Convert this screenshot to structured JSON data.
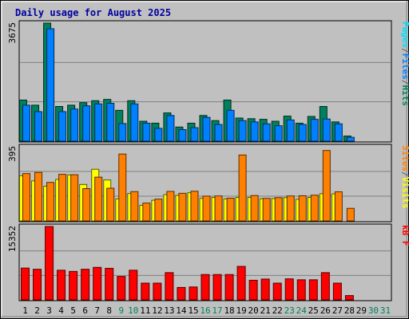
{
  "chart_data": {
    "type": "bar",
    "title": "Daily usage for August 2025",
    "days": [
      1,
      2,
      3,
      4,
      5,
      6,
      7,
      8,
      9,
      10,
      11,
      12,
      13,
      14,
      15,
      16,
      17,
      18,
      19,
      20,
      21,
      22,
      23,
      24,
      25,
      26,
      27,
      28,
      29,
      30,
      31
    ],
    "weekend_days": [
      9,
      10,
      16,
      17,
      23,
      24,
      30,
      31
    ],
    "panels": [
      {
        "id": "hits-files",
        "max_label": "3675",
        "ylim": [
          0,
          3675
        ],
        "legend": [
          "Pages",
          "/",
          "Files",
          "/",
          "Hits"
        ],
        "legend_colors": [
          "#00e0ff",
          "#606060",
          "#0080ff",
          "#606060",
          "#00805c"
        ],
        "series": [
          {
            "name": "Hits",
            "color": "#00805c",
            "values": [
              1280,
              1120,
              3675,
              1080,
              1120,
              1200,
              1260,
              1300,
              960,
              1260,
              620,
              560,
              880,
              440,
              560,
              800,
              640,
              1280,
              720,
              700,
              680,
              620,
              780,
              560,
              770,
              1080,
              600,
              160,
              0,
              0,
              0
            ]
          },
          {
            "name": "Files",
            "color": "#0080ff",
            "values": [
              1120,
              920,
              3500,
              920,
              1000,
              1100,
              1160,
              1180,
              550,
              1160,
              560,
              400,
              800,
              360,
              420,
              740,
              520,
              960,
              640,
              600,
              540,
              480,
              660,
              520,
              680,
              690,
              540,
              120,
              0,
              0,
              0
            ]
          }
        ]
      },
      {
        "id": "sites-visits",
        "max_label": "395",
        "ylim": [
          0,
          395
        ],
        "legend": [
          "Sites",
          "/",
          "Visits"
        ],
        "legend_colors": [
          "#ff8000",
          "#606060",
          "#ffff00"
        ],
        "series": [
          {
            "name": "Visits",
            "color": "#ffff00",
            "values": [
              241,
              213,
              185,
              221,
              245,
              194,
              275,
              218,
              117,
              146,
              83,
              110,
              140,
              136,
              150,
              120,
              125,
              117,
              125,
              125,
              118,
              119,
              124,
              115,
              125,
              145,
              144,
              0,
              0,
              0,
              0
            ]
          },
          {
            "name": "Sites",
            "color": "#ff8000",
            "values": [
              252,
              258,
              205,
              248,
              246,
              172,
              233,
              174,
              356,
              156,
              95,
              116,
              157,
              147,
              158,
              132,
              133,
              121,
              351,
              135,
              120,
              124,
              133,
              134,
              137,
              375,
              155,
              67,
              0,
              0,
              0
            ]
          }
        ]
      },
      {
        "id": "kbytes",
        "max_label": "15352",
        "ylim": [
          0,
          15352
        ],
        "legend": [
          "kB F"
        ],
        "legend_colors": [
          "#ff0000"
        ],
        "series": [
          {
            "name": "kB F",
            "color": "#ff0000",
            "values": [
              6650,
              6400,
              15352,
              6200,
              5950,
              6400,
              6800,
              6600,
              4900,
              6200,
              3500,
              3500,
              5700,
              2600,
              2700,
              5300,
              5300,
              5300,
              7000,
              4100,
              4350,
              3500,
              4400,
              4200,
              4200,
              5700,
              3500,
              900,
              0,
              0,
              0
            ]
          }
        ]
      }
    ]
  }
}
